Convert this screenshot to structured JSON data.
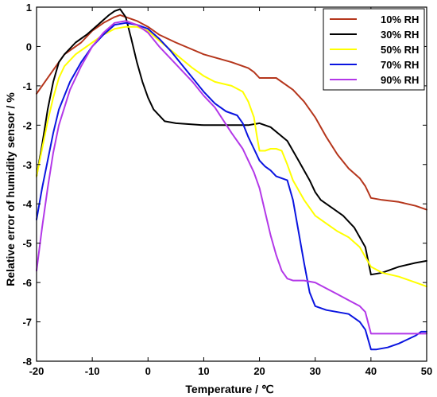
{
  "chart_data": {
    "type": "line",
    "title": "",
    "xlabel": "Temperature / ℃",
    "ylabel": "Relative error of humidity sensor / %",
    "xlim": [
      -20,
      50
    ],
    "ylim": [
      -8,
      1
    ],
    "xticks": [
      -20,
      -10,
      0,
      10,
      20,
      30,
      40,
      50
    ],
    "yticks": [
      -8,
      -7,
      -6,
      -5,
      -4,
      -3,
      -2,
      -1,
      0,
      1
    ],
    "grid": false,
    "legend_position": "top-right",
    "series": [
      {
        "name": "10% RH",
        "color": "#b5361c",
        "x": [
          -20,
          -17,
          -15,
          -12,
          -10,
          -8,
          -6,
          -5,
          -4,
          -3,
          -2,
          0,
          2,
          5,
          10,
          15,
          18,
          19,
          20,
          23,
          26,
          28,
          30,
          32,
          34,
          36,
          38,
          39,
          40,
          42,
          45,
          48,
          50
        ],
        "y": [
          -1.2,
          -0.6,
          -0.2,
          0.1,
          0.4,
          0.6,
          0.75,
          0.8,
          0.75,
          0.7,
          0.65,
          0.5,
          0.3,
          0.1,
          -0.2,
          -0.4,
          -0.55,
          -0.65,
          -0.8,
          -0.8,
          -1.1,
          -1.4,
          -1.8,
          -2.3,
          -2.75,
          -3.1,
          -3.35,
          -3.55,
          -3.85,
          -3.9,
          -3.95,
          -4.05,
          -4.15
        ]
      },
      {
        "name": "30% RH",
        "color": "#000000",
        "x": [
          -20,
          -19,
          -18,
          -17,
          -16,
          -15,
          -13,
          -11,
          -9,
          -7,
          -6,
          -5,
          -4,
          -3,
          -2,
          -1,
          0,
          1,
          3,
          5,
          10,
          15,
          18,
          20,
          22,
          25,
          27,
          29,
          30,
          31,
          33,
          35,
          37,
          39,
          40,
          42,
          45,
          48,
          50
        ],
        "y": [
          -3.3,
          -2.5,
          -1.6,
          -0.9,
          -0.4,
          -0.2,
          0.1,
          0.3,
          0.55,
          0.8,
          0.9,
          0.95,
          0.75,
          0.2,
          -0.4,
          -0.9,
          -1.3,
          -1.6,
          -1.9,
          -1.95,
          -2.0,
          -2.0,
          -2.0,
          -1.95,
          -2.05,
          -2.4,
          -2.9,
          -3.4,
          -3.7,
          -3.9,
          -4.1,
          -4.3,
          -4.6,
          -5.1,
          -5.8,
          -5.75,
          -5.6,
          -5.5,
          -5.45
        ]
      },
      {
        "name": "50% RH",
        "color": "#ffff00",
        "x": [
          -20,
          -19,
          -18,
          -17,
          -16,
          -15,
          -13,
          -10,
          -8,
          -6,
          -4,
          -2,
          0,
          2,
          5,
          8,
          10,
          12,
          15,
          17,
          18,
          19,
          19.5,
          20,
          21,
          22,
          23,
          24,
          25,
          26,
          28,
          30,
          32,
          34,
          36,
          38,
          39,
          40,
          42,
          45,
          48,
          50
        ],
        "y": [
          -3.3,
          -2.6,
          -1.9,
          -1.3,
          -0.8,
          -0.5,
          -0.2,
          0.1,
          0.3,
          0.45,
          0.5,
          0.5,
          0.4,
          0.15,
          -0.2,
          -0.55,
          -0.75,
          -0.9,
          -1.0,
          -1.15,
          -1.4,
          -1.8,
          -2.25,
          -2.65,
          -2.65,
          -2.6,
          -2.6,
          -2.65,
          -3.0,
          -3.4,
          -3.9,
          -4.3,
          -4.5,
          -4.7,
          -4.85,
          -5.1,
          -5.35,
          -5.6,
          -5.75,
          -5.85,
          -6.0,
          -6.1
        ]
      },
      {
        "name": "70% RH",
        "color": "#0a14e0",
        "x": [
          -20,
          -19,
          -18,
          -17,
          -16,
          -14,
          -12,
          -10,
          -8,
          -6,
          -4,
          -2,
          0,
          2,
          4,
          6,
          8,
          10,
          12,
          14,
          16,
          17,
          18,
          19,
          20,
          21,
          22,
          23,
          24,
          25,
          26,
          27,
          28,
          29,
          30,
          32,
          34,
          36,
          38,
          39,
          40,
          41,
          43,
          45,
          48,
          49,
          50
        ],
        "y": [
          -4.4,
          -3.6,
          -2.9,
          -2.2,
          -1.6,
          -0.9,
          -0.4,
          0.0,
          0.3,
          0.55,
          0.6,
          0.55,
          0.45,
          0.2,
          -0.1,
          -0.45,
          -0.8,
          -1.15,
          -1.45,
          -1.65,
          -1.75,
          -1.95,
          -2.3,
          -2.6,
          -2.9,
          -3.05,
          -3.15,
          -3.3,
          -3.35,
          -3.4,
          -3.9,
          -4.7,
          -5.5,
          -6.25,
          -6.6,
          -6.7,
          -6.75,
          -6.8,
          -7.0,
          -7.2,
          -7.7,
          -7.7,
          -7.65,
          -7.55,
          -7.35,
          -7.25,
          -7.25
        ]
      },
      {
        "name": "90% RH",
        "color": "#b338e8",
        "x": [
          -20,
          -19,
          -18,
          -17,
          -16,
          -14,
          -12,
          -10,
          -8,
          -6,
          -4,
          -2,
          0,
          2,
          5,
          8,
          10,
          12,
          15,
          17,
          18,
          19,
          20,
          21,
          22,
          23,
          24,
          25,
          26,
          27,
          28,
          30,
          32,
          34,
          36,
          38,
          39,
          40,
          42,
          45,
          48,
          50
        ],
        "y": [
          -5.7,
          -4.6,
          -3.6,
          -2.7,
          -2.0,
          -1.1,
          -0.5,
          0.0,
          0.35,
          0.6,
          0.65,
          0.55,
          0.35,
          0.0,
          -0.45,
          -0.9,
          -1.25,
          -1.55,
          -2.2,
          -2.6,
          -2.9,
          -3.2,
          -3.6,
          -4.2,
          -4.8,
          -5.3,
          -5.7,
          -5.9,
          -5.95,
          -5.95,
          -5.95,
          -6.0,
          -6.15,
          -6.3,
          -6.45,
          -6.6,
          -6.75,
          -7.3,
          -7.3,
          -7.3,
          -7.3,
          -7.3
        ]
      }
    ]
  }
}
